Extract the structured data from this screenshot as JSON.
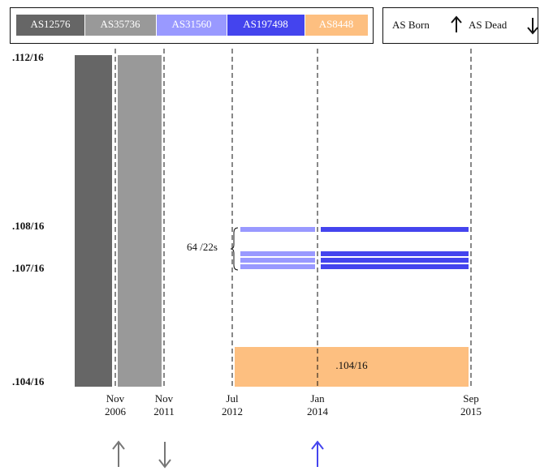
{
  "legend": {
    "items": [
      "AS12576",
      "AS35736",
      "AS31560",
      "AS197498",
      "AS8448"
    ],
    "born": "AS Born",
    "dead": "AS Dead"
  },
  "y_labels": [
    ".112/16",
    ".108/16",
    ".107/16",
    ".104/16"
  ],
  "x_labels": [
    {
      "month": "Nov",
      "year": "2006"
    },
    {
      "month": "Nov",
      "year": "2011"
    },
    {
      "month": "Jul",
      "year": "2012"
    },
    {
      "month": "Jan",
      "year": "2014"
    },
    {
      "month": "Sep",
      "year": "2015"
    }
  ],
  "annotation": "64 /22s",
  "block_label": ".104/16"
}
